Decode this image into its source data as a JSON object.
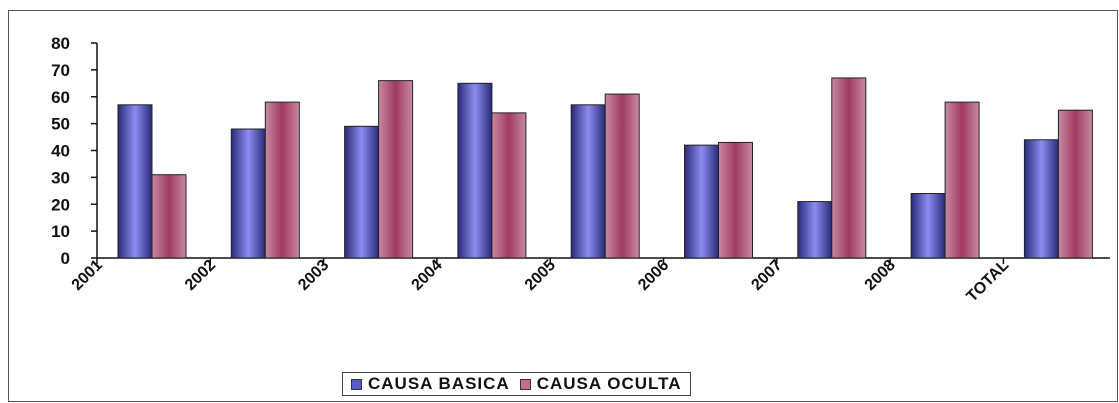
{
  "chart_data": {
    "type": "bar",
    "categories": [
      "2001",
      "2002",
      "2003",
      "2004",
      "2005",
      "2006",
      "2007",
      "2008",
      "TOTAL"
    ],
    "series": [
      {
        "name": "CAUSA BASICA",
        "color": "#5a5ad0",
        "values": [
          57,
          48,
          49,
          65,
          57,
          42,
          21,
          24,
          44
        ]
      },
      {
        "name": "CAUSA OCULTA",
        "color": "#c86a8c",
        "values": [
          31,
          58,
          66,
          54,
          61,
          43,
          67,
          58,
          55
        ]
      }
    ],
    "ylim": [
      0,
      80
    ],
    "yticks": [
      0,
      10,
      20,
      30,
      40,
      50,
      60,
      70,
      80
    ],
    "legend_position": "bottom",
    "grid": false
  }
}
